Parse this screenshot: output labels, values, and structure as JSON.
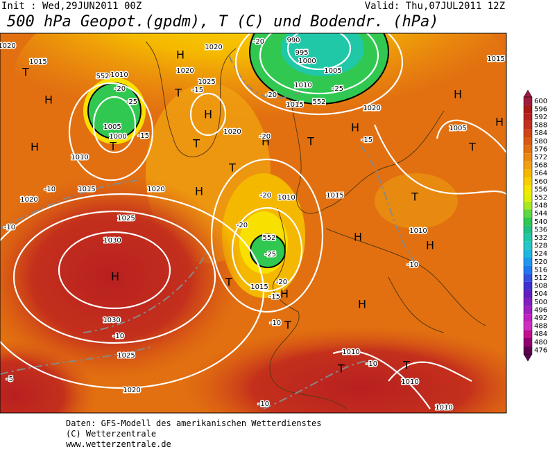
{
  "header": {
    "init": "Init : Wed,29JUN2011 00Z",
    "valid": "Valid: Thu,07JUL2011 12Z",
    "title": "500 hPa Geopot.(gpdm), T (C) und Bodendr. (hPa)"
  },
  "colorbar": {
    "levels": [
      600,
      596,
      592,
      588,
      584,
      580,
      576,
      572,
      568,
      564,
      560,
      556,
      552,
      548,
      544,
      540,
      536,
      532,
      528,
      524,
      520,
      516,
      512,
      508,
      504,
      500,
      496,
      492,
      488,
      484,
      480,
      476
    ],
    "colors": [
      "#9c1c40",
      "#a81818",
      "#b82020",
      "#c4301c",
      "#cf4418",
      "#d95a14",
      "#e27010",
      "#ea8a10",
      "#f0a010",
      "#f5b800",
      "#f8d000",
      "#f5e600",
      "#e0f000",
      "#a8e820",
      "#60d840",
      "#30c850",
      "#20c080",
      "#20c8a8",
      "#20c8c8",
      "#20b8e0",
      "#2098f0",
      "#2078f0",
      "#3050e0",
      "#4030d0",
      "#6020c0",
      "#8020c0",
      "#a020c0",
      "#c020c0",
      "#d030c0",
      "#c01090",
      "#900070",
      "#600050"
    ]
  },
  "map_labels": [
    "H",
    "H",
    "H",
    "H",
    "H",
    "H",
    "H",
    "H",
    "H",
    "H",
    "H",
    "H",
    "H",
    "H",
    "T",
    "T",
    "T",
    "T",
    "T",
    "T",
    "T",
    "T",
    "T",
    "T",
    "T",
    "T",
    "1015",
    "1010",
    "1005",
    "1000",
    "1010",
    "1015",
    "1020",
    "1020",
    "1025",
    "1030",
    "1030",
    "1025",
    "1020",
    "1020",
    "1025",
    "1020",
    "1020",
    "990",
    "995",
    "1000",
    "1005",
    "1010",
    "1015",
    "1020",
    "1005",
    "1010",
    "1015",
    "1010",
    "1015",
    "1010",
    "1010",
    "1010",
    "1020",
    "1015",
    "-20",
    "-25",
    "-15",
    "-10",
    "-10",
    "-10",
    "-5",
    "-15",
    "-20",
    "-20",
    "-25",
    "-20",
    "-15",
    "-20",
    "-20",
    "-25",
    "-20",
    "-15",
    "-10",
    "-10",
    "-10",
    "-10",
    "552",
    "552",
    "552"
  ],
  "footer": [
    "Daten: GFS-Modell des amerikanischen Wetterdienstes",
    "(C) Wetterzentrale",
    "www.wetterzentrale.de"
  ]
}
